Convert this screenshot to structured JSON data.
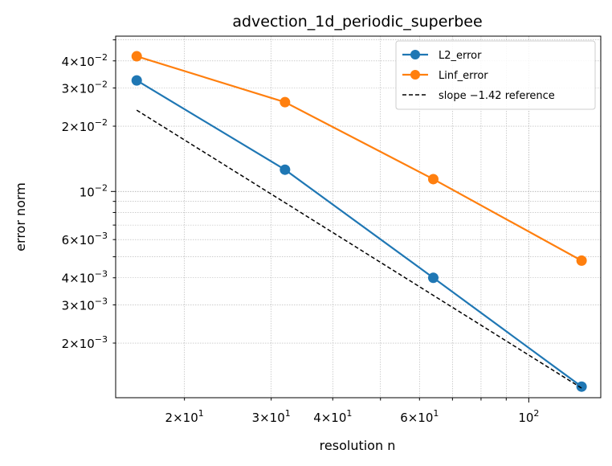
{
  "chart_data": {
    "type": "line",
    "title": "advection_1d_periodic_superbee",
    "xlabel": "resolution n",
    "ylabel": "error norm",
    "xscale": "log",
    "yscale": "log",
    "grid": true,
    "legend_position": "top-right",
    "x": [
      16,
      32,
      64,
      128
    ],
    "xlim": [
      14.5,
      140
    ],
    "ylim": [
      0.00112,
      0.052
    ],
    "series": [
      {
        "name": "L2_error",
        "values": [
          0.0325,
          0.0126,
          0.004,
          0.00126
        ],
        "color": "#1f77b4",
        "style": "solid",
        "marker": "circle"
      },
      {
        "name": "Linf_error",
        "values": [
          0.042,
          0.0258,
          0.0114,
          0.0048
        ],
        "color": "#ff7f0e",
        "style": "solid",
        "marker": "circle"
      },
      {
        "name": "slope −1.42 reference",
        "values": [
          0.0237,
          0.00888,
          0.00332,
          0.00124
        ],
        "color": "#000000",
        "style": "dashed",
        "marker": "none"
      }
    ],
    "x_ticks": [
      {
        "value": 20,
        "mant": "2",
        "exp": "1"
      },
      {
        "value": 30,
        "mant": "3",
        "exp": "1"
      },
      {
        "value": 40,
        "mant": "4",
        "exp": "1"
      },
      {
        "value": 60,
        "mant": "6",
        "exp": "1"
      },
      {
        "value": 100,
        "mant": "",
        "exp": "2"
      }
    ],
    "y_ticks": [
      {
        "value": 0.04,
        "mant": "4",
        "exp": "−2"
      },
      {
        "value": 0.03,
        "mant": "3",
        "exp": "−2"
      },
      {
        "value": 0.02,
        "mant": "2",
        "exp": "−2"
      },
      {
        "value": 0.01,
        "mant": "",
        "exp": "−2"
      },
      {
        "value": 0.006,
        "mant": "6",
        "exp": "−3"
      },
      {
        "value": 0.004,
        "mant": "4",
        "exp": "−3"
      },
      {
        "value": 0.003,
        "mant": "3",
        "exp": "−3"
      },
      {
        "value": 0.002,
        "mant": "2",
        "exp": "−3"
      }
    ]
  }
}
